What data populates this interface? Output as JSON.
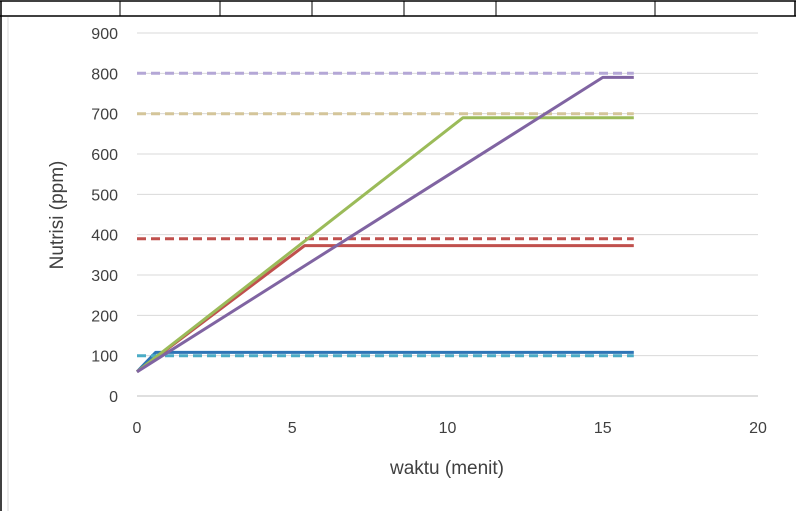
{
  "chart_data": {
    "type": "line",
    "title": "",
    "xlabel": "waktu (menit)",
    "ylabel": "Nutrisi (ppm)",
    "xlim": [
      0,
      20
    ],
    "ylim": [
      0,
      900
    ],
    "x_ticks": [
      0,
      5,
      10,
      15,
      20
    ],
    "y_ticks": [
      0,
      100,
      200,
      300,
      400,
      500,
      600,
      700,
      800,
      900
    ],
    "grid": "horizontal",
    "legend": "none",
    "series": [
      {
        "style": "solid",
        "color": "#2e75b6",
        "x": [
          0,
          0.6,
          16
        ],
        "y": [
          60,
          108,
          108
        ]
      },
      {
        "style": "dashed",
        "color": "#4bacc6",
        "x": [
          0,
          16
        ],
        "y": [
          100,
          100
        ]
      },
      {
        "style": "solid",
        "color": "#c0504d",
        "x": [
          0,
          5.4,
          16
        ],
        "y": [
          60,
          373,
          373
        ]
      },
      {
        "style": "dashed",
        "color": "#c0504d",
        "x": [
          0,
          16
        ],
        "y": [
          390,
          390
        ]
      },
      {
        "style": "solid",
        "color": "#9bbb59",
        "x": [
          0,
          10.5,
          16
        ],
        "y": [
          60,
          690,
          690
        ]
      },
      {
        "style": "dashed",
        "color": "#d4c59a",
        "x": [
          0,
          16
        ],
        "y": [
          700,
          700
        ]
      },
      {
        "style": "solid",
        "color": "#8064a2",
        "x": [
          0,
          15,
          16
        ],
        "y": [
          60,
          790,
          790
        ]
      },
      {
        "style": "dashed",
        "color": "#b4a7d6",
        "x": [
          0,
          16
        ],
        "y": [
          800,
          800
        ]
      }
    ]
  }
}
